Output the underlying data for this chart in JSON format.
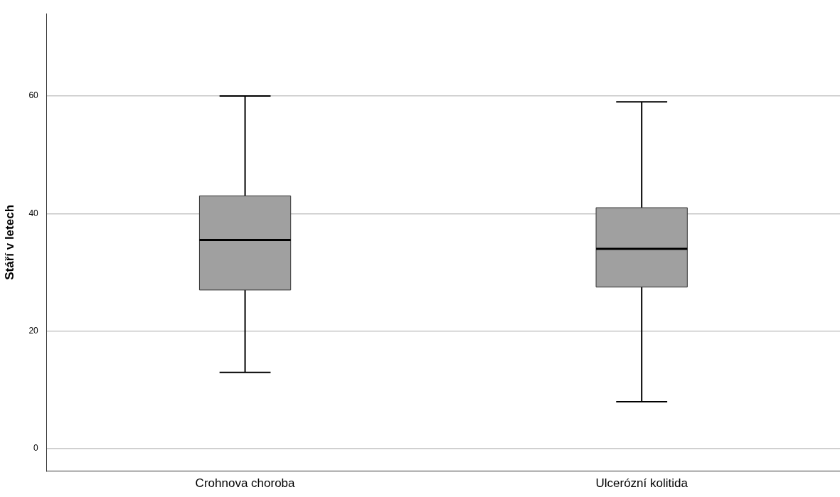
{
  "chart_data": {
    "type": "box",
    "ylabel": "Stáří v letech",
    "categories": [
      "Crohnova choroba",
      "Ulcerózní kolitida"
    ],
    "color": "#a0a0a0",
    "boxes": [
      {
        "low": 13,
        "q1": 27,
        "median": 35.5,
        "q3": 43,
        "high": 60
      },
      {
        "low": 8,
        "q1": 27.5,
        "median": 34,
        "q3": 41,
        "high": 59
      }
    ],
    "ylim": [
      -3.8,
      74
    ],
    "yticks": [
      0,
      20,
      40,
      60
    ],
    "grid": "y"
  }
}
